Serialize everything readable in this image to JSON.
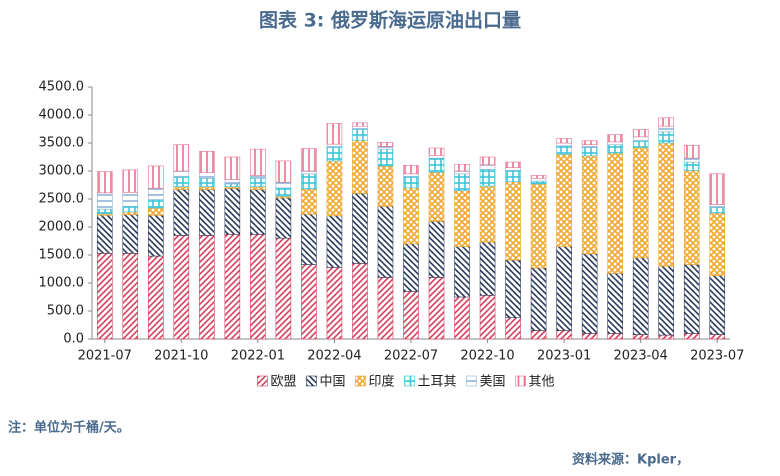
{
  "chart_data": {
    "type": "stacked_bar",
    "title": "图表 3:  俄罗斯海运原油出口量",
    "note": "注：单位为千桶/天。",
    "source": "资料来源：Kpler，",
    "categories": [
      "2021-07",
      null,
      null,
      "2021-10",
      null,
      null,
      "2022-01",
      null,
      null,
      "2022-04",
      null,
      null,
      "2022-07",
      null,
      null,
      "2022-10",
      null,
      null,
      "2023-01",
      null,
      null,
      "2023-04",
      null,
      null,
      "2023-07"
    ],
    "ylim": [
      0,
      4500
    ],
    "yticks": [
      {
        "value": 0,
        "label": "0.0"
      },
      {
        "value": 500,
        "label": "500.0"
      },
      {
        "value": 1000,
        "label": "1000.0"
      },
      {
        "value": 1500,
        "label": "1500.0"
      },
      {
        "value": 2000,
        "label": "2000.0"
      },
      {
        "value": 2500,
        "label": "2500.0"
      },
      {
        "value": 3000,
        "label": "3000.0"
      },
      {
        "value": 3500,
        "label": "3500.0"
      },
      {
        "value": 4000,
        "label": "4000.0"
      },
      {
        "value": 4500,
        "label": "4500.0"
      }
    ],
    "grid": false,
    "legend": "bottom",
    "series": [
      {
        "name": "欧盟",
        "color": "#d6405e",
        "hatch": "forward",
        "values": [
          1530,
          1530,
          1480,
          1850,
          1850,
          1870,
          1870,
          1800,
          1330,
          1280,
          1350,
          1100,
          850,
          1100,
          750,
          780,
          380,
          150,
          150,
          100,
          100,
          80,
          70,
          100,
          80
        ]
      },
      {
        "name": "中国",
        "color": "#2b3a5c",
        "hatch": "backward",
        "values": [
          680,
          690,
          730,
          820,
          820,
          820,
          800,
          720,
          900,
          920,
          1250,
          1270,
          850,
          1000,
          900,
          950,
          1030,
          1120,
          1500,
          1420,
          1070,
          1370,
          1230,
          1230,
          1050
        ]
      },
      {
        "name": "印度",
        "color": "#f0a830",
        "hatch": "cross",
        "values": [
          30,
          50,
          130,
          50,
          50,
          30,
          50,
          30,
          450,
          980,
          950,
          720,
          1000,
          880,
          1000,
          1000,
          1400,
          1500,
          1650,
          1750,
          2150,
          1970,
          2200,
          1680,
          1120
        ]
      },
      {
        "name": "土耳其",
        "color": "#3cc4d8",
        "hatch": "grid",
        "values": [
          80,
          100,
          150,
          180,
          150,
          50,
          150,
          150,
          270,
          250,
          200,
          300,
          200,
          250,
          300,
          300,
          200,
          50,
          150,
          150,
          150,
          120,
          200,
          150,
          100
        ]
      },
      {
        "name": "美国",
        "color": "#8fb4d8",
        "hatch": "horizontal",
        "values": [
          290,
          250,
          200,
          100,
          100,
          80,
          50,
          100,
          50,
          50,
          50,
          50,
          50,
          50,
          50,
          80,
          50,
          50,
          50,
          50,
          50,
          70,
          100,
          70,
          50
        ]
      },
      {
        "name": "其他",
        "color": "#e8708e",
        "hatch": "vertical",
        "values": [
          380,
          400,
          400,
          470,
          380,
          400,
          470,
          380,
          400,
          370,
          60,
          70,
          150,
          130,
          120,
          140,
          100,
          50,
          80,
          70,
          130,
          130,
          150,
          230,
          550
        ]
      }
    ]
  }
}
